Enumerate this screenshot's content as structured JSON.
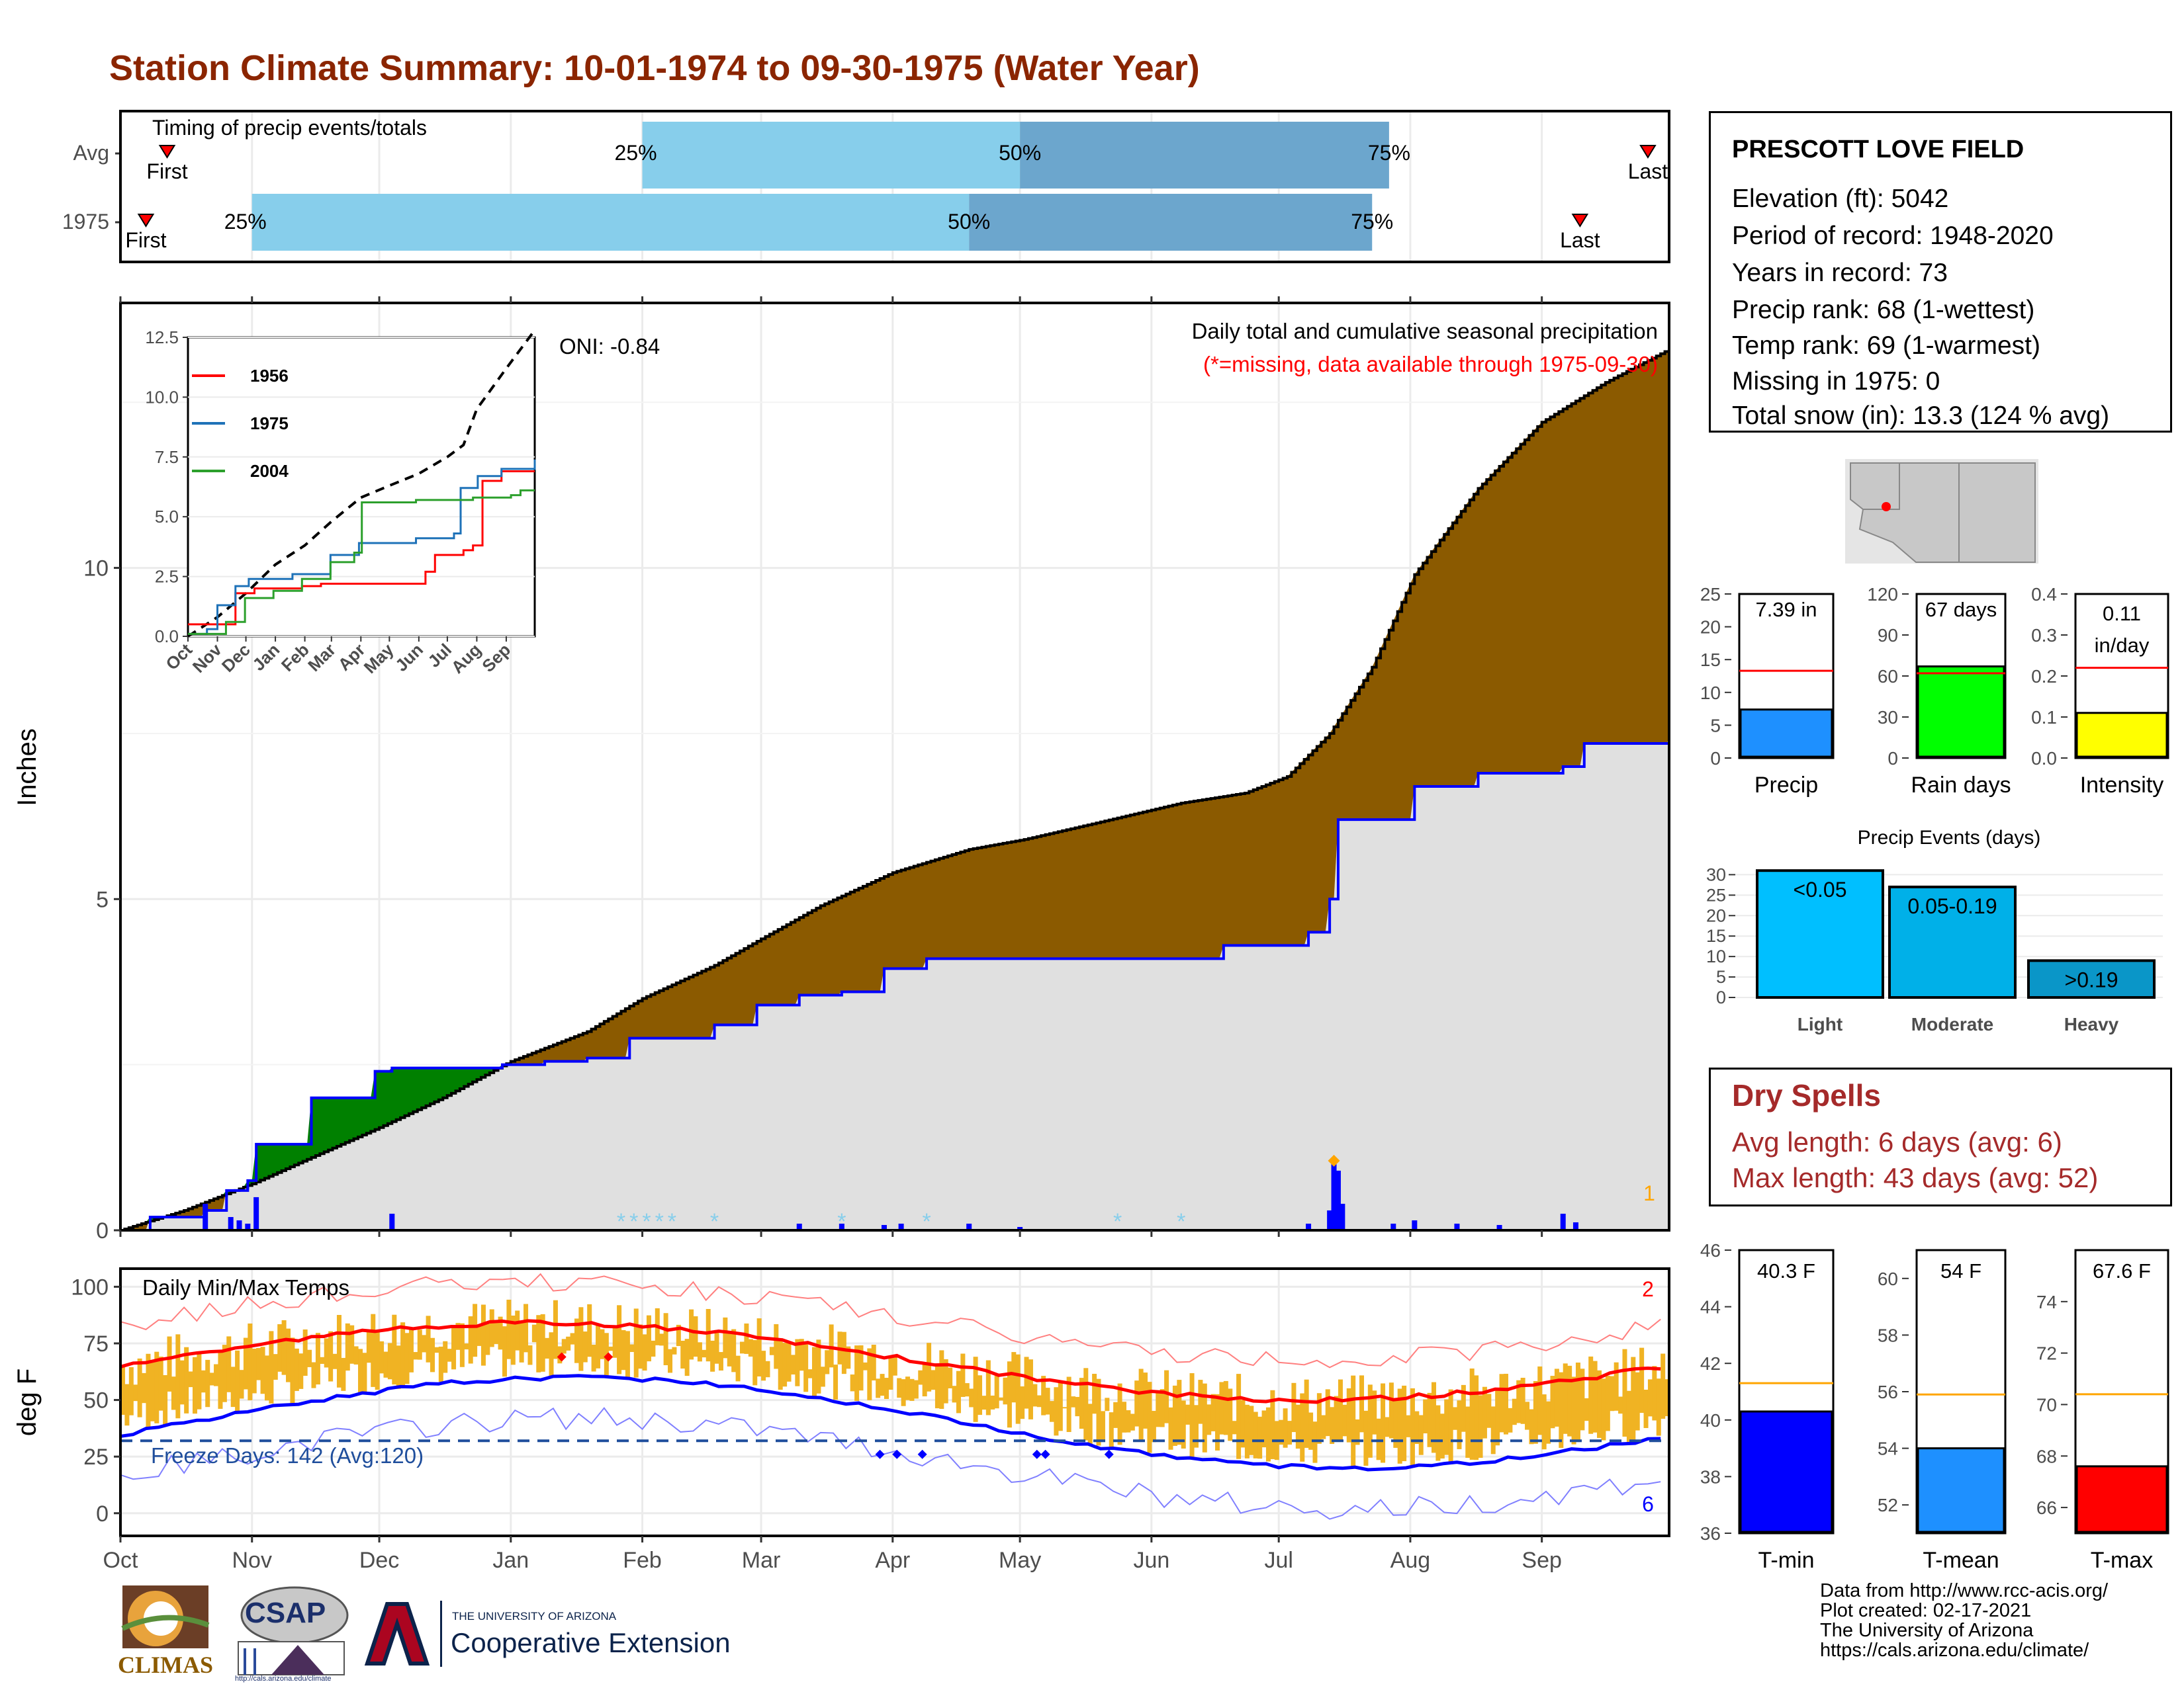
{
  "title": "Station Climate Summary: 10-01-1974 to 09-30-1975 (Water Year)",
  "station": {
    "name": "PRESCOTT LOVE FIELD",
    "elevation": "Elevation (ft): 5042",
    "period": "Period of record: 1948-2020",
    "years": "Years in record: 73",
    "precip_rank": "Precip rank: 68 (1-wettest)",
    "temp_rank": "Temp rank: 69 (1-warmest)",
    "missing": "Missing in 1975: 0",
    "snow": "Total snow (in): 13.3 (124 % avg)"
  },
  "dry_spells": {
    "heading": "Dry Spells",
    "avg": "Avg length: 6 days (avg: 6)",
    "max": "Max length: 43 days (avg: 52)"
  },
  "footer": {
    "line1": "Data from http://www.rcc-acis.org/",
    "line2": "Plot created: 02-17-2021",
    "line3": "The University of Arizona",
    "line4": "https://cals.arizona.edu/climate/"
  },
  "logos": {
    "climas": "CLIMAS",
    "csap": "CSAP",
    "csap_url": "http://cals.arizona.edu/climate",
    "ua_small": "THE UNIVERSITY OF ARIZONA",
    "coop": "Cooperative Extension"
  },
  "colors": {
    "title": "#8B2500",
    "cumulative": "#8B5A00",
    "avg_fill": "#E0E0E0",
    "above_avg": "#008000",
    "precip_line": "#0000FF",
    "temp_bar": "#F0B323",
    "quarter": "#87CEEB",
    "half": "#6CA6CD",
    "red": "#FF0000",
    "orange": "#FFA500"
  },
  "chart_data": [
    {
      "type": "bar",
      "name": "timing",
      "title": "Timing of precip events/totals",
      "rows": [
        {
          "label": "Avg",
          "first": "Oct 12",
          "q25": "Feb 1",
          "q50": "May 1",
          "q75": "Jul 27",
          "last": "Sep 26"
        },
        {
          "label": "1975",
          "first": "Oct 7",
          "q25": "Nov 1",
          "q50": "Apr 19",
          "q75": "Jul 23",
          "last": "Sep 10"
        }
      ],
      "markers": [
        "First",
        "Last",
        "25%",
        "50%",
        "75%"
      ]
    },
    {
      "type": "area",
      "name": "precip",
      "title": "Daily total and cumulative seasonal precipitation",
      "subtitle": "(*=missing, data available through 1975-09-30)",
      "annotation": "ONI: -0.84",
      "ylabel": "Inches",
      "ylim": [
        0,
        14
      ],
      "yticks": [
        0,
        5,
        10
      ],
      "x_months": [
        "Oct",
        "Nov",
        "Dec",
        "Jan",
        "Feb",
        "Mar",
        "Apr",
        "May",
        "Jun",
        "Jul",
        "Aug",
        "Sep"
      ],
      "avg_cumulative": {
        "x": [
          0,
          15,
          31,
          45,
          61,
          76,
          92,
          110,
          123,
          140,
          151,
          165,
          182,
          200,
          213,
          230,
          250,
          265,
          275,
          285,
          295,
          305,
          320,
          335,
          350,
          365
        ],
        "y": [
          0,
          0.3,
          0.7,
          1.1,
          1.55,
          2.0,
          2.55,
          3.0,
          3.5,
          4.0,
          4.4,
          4.9,
          5.4,
          5.75,
          5.9,
          6.15,
          6.45,
          6.6,
          6.85,
          7.5,
          8.5,
          9.9,
          11.2,
          12.2,
          12.8,
          13.3
        ]
      },
      "obs_cumulative": {
        "x": [
          0,
          7,
          20,
          25,
          30,
          32,
          45,
          60,
          64,
          90,
          100,
          110,
          120,
          140,
          150,
          160,
          170,
          180,
          190,
          200,
          210,
          240,
          260,
          270,
          280,
          285,
          287,
          305,
          310,
          320,
          340,
          345,
          365
        ],
        "y": [
          0,
          0.2,
          0.3,
          0.6,
          0.75,
          1.3,
          2.0,
          2.4,
          2.45,
          2.5,
          2.55,
          2.6,
          2.9,
          3.1,
          3.4,
          3.55,
          3.6,
          3.95,
          4.1,
          4.1,
          4.1,
          4.1,
          4.3,
          4.3,
          4.5,
          5.0,
          6.2,
          6.7,
          6.7,
          6.9,
          7.0,
          7.35,
          7.39
        ]
      },
      "daily_events": {
        "x": [
          20,
          26,
          28,
          30,
          32,
          64,
          160,
          170,
          180,
          184,
          200,
          212,
          280,
          285,
          286,
          287,
          288,
          300,
          305,
          315,
          325,
          340,
          343
        ],
        "y": [
          0.4,
          0.2,
          0.15,
          0.1,
          0.5,
          0.25,
          0.1,
          0.1,
          0.08,
          0.1,
          0.1,
          0.05,
          0.1,
          0.3,
          1.0,
          0.9,
          0.4,
          0.1,
          0.15,
          0.1,
          0.08,
          0.25,
          0.12
        ]
      },
      "label_right": "1"
    },
    {
      "type": "line",
      "name": "inset",
      "series": [
        {
          "name": "1956",
          "color": "#FF0000"
        },
        {
          "name": "1975",
          "color": "#1E72B8"
        },
        {
          "name": "2004",
          "color": "#2CA02C"
        }
      ],
      "ylim": [
        0,
        12.5
      ],
      "yticks": [
        0.0,
        2.5,
        5.0,
        7.5,
        10.0,
        12.5
      ],
      "x_months": [
        "Oct",
        "Nov",
        "Dec",
        "Jan",
        "Feb",
        "Mar",
        "Apr",
        "May",
        "Jun",
        "Jul",
        "Aug",
        "Sep"
      ]
    },
    {
      "type": "bar",
      "name": "temps",
      "title": "Daily Min/Max Temps",
      "ylabel": "deg F",
      "ylim": [
        -10,
        108
      ],
      "yticks": [
        0,
        25,
        50,
        75,
        100
      ],
      "annotation": "Freeze Days: 142 (Avg:120)",
      "label_top": "2",
      "label_bottom": "6",
      "x_months": [
        "Oct",
        "Nov",
        "Dec",
        "Jan",
        "Feb",
        "Mar",
        "Apr",
        "May",
        "Jun",
        "Jul",
        "Aug",
        "Sep"
      ]
    },
    {
      "type": "bar",
      "name": "precip_total",
      "label": "Precip",
      "value": 7.39,
      "value_label": "7.39 in",
      "avg": 13.3,
      "ylim": [
        0,
        25
      ],
      "yticks": [
        0,
        5,
        10,
        15,
        20,
        25
      ],
      "color": "#1E90FF"
    },
    {
      "type": "bar",
      "name": "rain_days",
      "label": "Rain days",
      "value": 67,
      "value_label": "67 days",
      "avg": 62,
      "ylim": [
        0,
        120
      ],
      "yticks": [
        0,
        30,
        60,
        90,
        120
      ],
      "color": "#00FF00"
    },
    {
      "type": "bar",
      "name": "intensity",
      "label": "Intensity",
      "value": 0.11,
      "value_label_1": "0.11",
      "value_label_2": "in/day",
      "avg": 0.22,
      "ylim": [
        0,
        0.4
      ],
      "yticks": [
        0.0,
        0.1,
        0.2,
        0.3,
        0.4
      ],
      "color": "#FFFF00"
    },
    {
      "type": "bar",
      "name": "events",
      "title": "Precip Events (days)",
      "categories": [
        "Light",
        "Moderate",
        "Heavy"
      ],
      "labels": [
        "<0.05",
        "0.05-0.19",
        ">0.19"
      ],
      "values": [
        31,
        27,
        9
      ],
      "colors": [
        "#00BFFF",
        "#00B0E8",
        "#0A96C8"
      ],
      "ylim": [
        0,
        32
      ],
      "yticks": [
        0,
        5,
        10,
        15,
        20,
        25,
        30
      ]
    },
    {
      "type": "bar",
      "name": "tmin",
      "label": "T-min",
      "value": 40.3,
      "value_label": "40.3 F",
      "avg": 41.3,
      "ylim": [
        36,
        46
      ],
      "yticks": [
        36,
        38,
        40,
        42,
        44,
        46
      ],
      "color": "#0000FF"
    },
    {
      "type": "bar",
      "name": "tmean",
      "label": "T-mean",
      "value": 54,
      "value_label": "54 F",
      "avg": 55.9,
      "ylim": [
        51,
        61
      ],
      "yticks": [
        52,
        54,
        56,
        58,
        60
      ],
      "color": "#1E90FF"
    },
    {
      "type": "bar",
      "name": "tmax",
      "label": "T-max",
      "value": 67.6,
      "value_label": "67.6 F",
      "avg": 70.4,
      "ylim": [
        65,
        76
      ],
      "yticks": [
        66,
        68,
        70,
        72,
        74
      ],
      "color": "#FF0000"
    }
  ]
}
